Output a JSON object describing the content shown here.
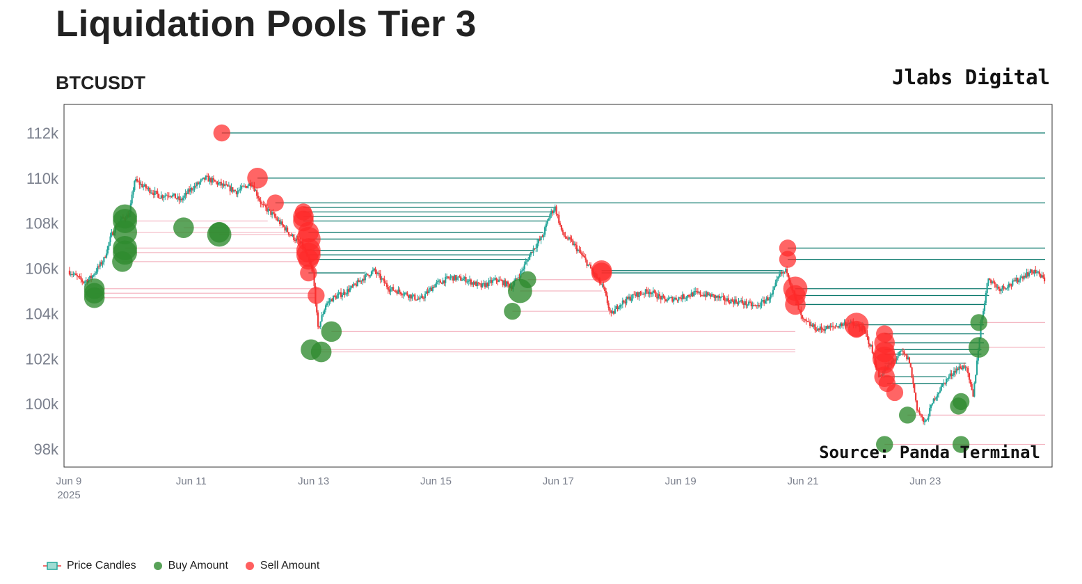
{
  "title": "Liquidation Pools Tier 3",
  "subtitle": "BTCUSDT",
  "brand": "Jlabs Digital",
  "source": "Source: Panda Terminal",
  "colors": {
    "up": "#26a69a",
    "down": "#ef3b3b",
    "buy": "#2e8b2e",
    "sell": "#ff2a2a",
    "buy_line": "#f4b6c2",
    "sell_line": "#0e7a6e"
  },
  "legend": [
    {
      "name": "Price Candles",
      "icon": "candle-icon"
    },
    {
      "name": "Buy Amount",
      "icon": "green-dot-icon"
    },
    {
      "name": "Sell Amount",
      "icon": "red-dot-icon"
    }
  ],
  "chart_data": {
    "type": "scatter",
    "xlim": [
      "2025-06-09",
      "2025-06-24T23:00"
    ],
    "ylim": [
      97200,
      113200
    ],
    "y_ticks": [
      98000,
      100000,
      102000,
      104000,
      106000,
      108000,
      110000,
      112000
    ],
    "y_tick_labels": [
      "98k",
      "100k",
      "102k",
      "104k",
      "106k",
      "108k",
      "110k",
      "112k"
    ],
    "x_ticks": [
      "2025-06-09",
      "2025-06-11",
      "2025-06-13",
      "2025-06-15",
      "2025-06-17",
      "2025-06-19",
      "2025-06-21",
      "2025-06-23"
    ],
    "x_tick_labels": [
      "Jun 9",
      "Jun 11",
      "Jun 13",
      "Jun 15",
      "Jun 17",
      "Jun 19",
      "Jun 21",
      "Jun 23"
    ],
    "x_year_label": "2025",
    "price_path": [
      [
        "2025-06-09T00:00",
        105900
      ],
      [
        "2025-06-09T06:00",
        105400
      ],
      [
        "2025-06-09T09:00",
        105600
      ],
      [
        "2025-06-09T14:00",
        106400
      ],
      [
        "2025-06-09T17:00",
        107500
      ],
      [
        "2025-06-09T20:00",
        108100
      ],
      [
        "2025-06-10T00:00",
        108400
      ],
      [
        "2025-06-10T02:00",
        109900
      ],
      [
        "2025-06-10T06:00",
        109600
      ],
      [
        "2025-06-10T12:00",
        109200
      ],
      [
        "2025-06-10T16:00",
        109300
      ],
      [
        "2025-06-10T20:00",
        109000
      ],
      [
        "2025-06-11T00:00",
        109500
      ],
      [
        "2025-06-11T06:00",
        110000
      ],
      [
        "2025-06-11T12:00",
        109700
      ],
      [
        "2025-06-11T18:00",
        109400
      ],
      [
        "2025-06-12T00:00",
        109800
      ],
      [
        "2025-06-12T04:00",
        108800
      ],
      [
        "2025-06-12T08:00",
        108400
      ],
      [
        "2025-06-12T12:00",
        107900
      ],
      [
        "2025-06-12T16:00",
        107400
      ],
      [
        "2025-06-12T20:00",
        107000
      ],
      [
        "2025-06-13T00:00",
        105800
      ],
      [
        "2025-06-13T02:00",
        103300
      ],
      [
        "2025-06-13T05:00",
        104400
      ],
      [
        "2025-06-13T08:00",
        104700
      ],
      [
        "2025-06-13T12:00",
        104900
      ],
      [
        "2025-06-13T16:00",
        105200
      ],
      [
        "2025-06-13T20:00",
        105600
      ],
      [
        "2025-06-14T00:00",
        105900
      ],
      [
        "2025-06-14T06:00",
        105100
      ],
      [
        "2025-06-14T12:00",
        104900
      ],
      [
        "2025-06-14T18:00",
        104600
      ],
      [
        "2025-06-15T00:00",
        105300
      ],
      [
        "2025-06-15T06:00",
        105600
      ],
      [
        "2025-06-15T12:00",
        105500
      ],
      [
        "2025-06-15T18:00",
        105200
      ],
      [
        "2025-06-16T00:00",
        105500
      ],
      [
        "2025-06-16T06:00",
        105200
      ],
      [
        "2025-06-16T10:00",
        105900
      ],
      [
        "2025-06-16T14:00",
        106800
      ],
      [
        "2025-06-16T18:00",
        107400
      ],
      [
        "2025-06-16T21:00",
        108400
      ],
      [
        "2025-06-16T23:00",
        108700
      ],
      [
        "2025-06-17T02:00",
        107500
      ],
      [
        "2025-06-17T06:00",
        107100
      ],
      [
        "2025-06-17T10:00",
        106500
      ],
      [
        "2025-06-17T14:00",
        105800
      ],
      [
        "2025-06-17T18:00",
        105100
      ],
      [
        "2025-06-17T21:00",
        103900
      ],
      [
        "2025-06-18T00:00",
        104400
      ],
      [
        "2025-06-18T06:00",
        104800
      ],
      [
        "2025-06-18T12:00",
        105000
      ],
      [
        "2025-06-18T18:00",
        104600
      ],
      [
        "2025-06-19T00:00",
        104700
      ],
      [
        "2025-06-19T06:00",
        104900
      ],
      [
        "2025-06-19T12:00",
        104800
      ],
      [
        "2025-06-19T18:00",
        104600
      ],
      [
        "2025-06-20T00:00",
        104500
      ],
      [
        "2025-06-20T06:00",
        104300
      ],
      [
        "2025-06-20T12:00",
        104800
      ],
      [
        "2025-06-20T15:00",
        105700
      ],
      [
        "2025-06-20T18:00",
        105900
      ],
      [
        "2025-06-20T21:00",
        104700
      ],
      [
        "2025-06-21T00:00",
        103700
      ],
      [
        "2025-06-21T06:00",
        103300
      ],
      [
        "2025-06-21T12:00",
        103400
      ],
      [
        "2025-06-21T18:00",
        103600
      ],
      [
        "2025-06-22T00:00",
        103300
      ],
      [
        "2025-06-22T03:00",
        102500
      ],
      [
        "2025-06-22T06:00",
        101200
      ],
      [
        "2025-06-22T10:00",
        101700
      ],
      [
        "2025-06-22T15:00",
        102300
      ],
      [
        "2025-06-22T18:00",
        101900
      ],
      [
        "2025-06-22T21:00",
        99800
      ],
      [
        "2025-06-23T00:00",
        99100
      ],
      [
        "2025-06-23T04:00",
        100300
      ],
      [
        "2025-06-23T08:00",
        101000
      ],
      [
        "2025-06-23T12:00",
        101500
      ],
      [
        "2025-06-23T16:00",
        101700
      ],
      [
        "2025-06-23T19:00",
        100300
      ],
      [
        "2025-06-23T22:00",
        103500
      ],
      [
        "2025-06-24T01:00",
        105600
      ],
      [
        "2025-06-24T05:00",
        105100
      ],
      [
        "2025-06-24T10:00",
        105300
      ],
      [
        "2025-06-24T15:00",
        105700
      ],
      [
        "2025-06-24T19:00",
        105900
      ],
      [
        "2025-06-24T23:00",
        105500
      ]
    ],
    "series": [
      {
        "name": "Buy Amount",
        "points": [
          {
            "x": "2025-06-09T10:00",
            "y": 104700,
            "size": 3
          },
          {
            "x": "2025-06-09T10:00",
            "y": 104900,
            "size": 3
          },
          {
            "x": "2025-06-09T10:00",
            "y": 105100,
            "size": 3
          },
          {
            "x": "2025-06-09T21:00",
            "y": 106300,
            "size": 3
          },
          {
            "x": "2025-06-09T22:00",
            "y": 106700,
            "size": 4
          },
          {
            "x": "2025-06-09T22:00",
            "y": 106900,
            "size": 4
          },
          {
            "x": "2025-06-09T22:00",
            "y": 107600,
            "size": 4
          },
          {
            "x": "2025-06-09T22:00",
            "y": 108100,
            "size": 4
          },
          {
            "x": "2025-06-09T22:00",
            "y": 108300,
            "size": 4
          },
          {
            "x": "2025-06-10T21:00",
            "y": 107800,
            "size": 3
          },
          {
            "x": "2025-06-11T11:00",
            "y": 107500,
            "size": 4
          },
          {
            "x": "2025-06-11T11:00",
            "y": 107600,
            "size": 3
          },
          {
            "x": "2025-06-12T23:00",
            "y": 102400,
            "size": 3
          },
          {
            "x": "2025-06-13T03:00",
            "y": 102300,
            "size": 3
          },
          {
            "x": "2025-06-13T07:00",
            "y": 103200,
            "size": 3
          },
          {
            "x": "2025-06-16T06:00",
            "y": 104100,
            "size": 2
          },
          {
            "x": "2025-06-16T09:00",
            "y": 105000,
            "size": 4
          },
          {
            "x": "2025-06-16T12:00",
            "y": 105500,
            "size": 2
          },
          {
            "x": "2025-06-22T08:00",
            "y": 98200,
            "size": 2
          },
          {
            "x": "2025-06-22T17:00",
            "y": 99500,
            "size": 2
          },
          {
            "x": "2025-06-23T13:00",
            "y": 99900,
            "size": 2
          },
          {
            "x": "2025-06-23T14:00",
            "y": 100100,
            "size": 2
          },
          {
            "x": "2025-06-23T14:00",
            "y": 98200,
            "size": 2
          },
          {
            "x": "2025-06-23T21:00",
            "y": 102500,
            "size": 3
          },
          {
            "x": "2025-06-23T21:00",
            "y": 103600,
            "size": 2
          }
        ]
      },
      {
        "name": "Sell Amount",
        "points": [
          {
            "x": "2025-06-11T12:00",
            "y": 112000,
            "size": 2
          },
          {
            "x": "2025-06-12T02:00",
            "y": 110000,
            "size": 3
          },
          {
            "x": "2025-06-12T09:00",
            "y": 108900,
            "size": 2
          },
          {
            "x": "2025-06-12T20:00",
            "y": 108500,
            "size": 2
          },
          {
            "x": "2025-06-12T20:00",
            "y": 108300,
            "size": 3
          },
          {
            "x": "2025-06-12T20:00",
            "y": 108100,
            "size": 3
          },
          {
            "x": "2025-06-12T22:00",
            "y": 107600,
            "size": 3
          },
          {
            "x": "2025-06-12T22:00",
            "y": 107300,
            "size": 4
          },
          {
            "x": "2025-06-12T22:00",
            "y": 106800,
            "size": 4
          },
          {
            "x": "2025-06-12T22:00",
            "y": 106600,
            "size": 4
          },
          {
            "x": "2025-06-12T22:00",
            "y": 106400,
            "size": 3
          },
          {
            "x": "2025-06-12T22:00",
            "y": 105800,
            "size": 2
          },
          {
            "x": "2025-06-13T01:00",
            "y": 104800,
            "size": 2
          },
          {
            "x": "2025-06-17T17:00",
            "y": 105900,
            "size": 3
          },
          {
            "x": "2025-06-17T17:00",
            "y": 105800,
            "size": 3
          },
          {
            "x": "2025-06-20T18:00",
            "y": 106900,
            "size": 2
          },
          {
            "x": "2025-06-20T18:00",
            "y": 106400,
            "size": 2
          },
          {
            "x": "2025-06-20T21:00",
            "y": 105100,
            "size": 4
          },
          {
            "x": "2025-06-20T21:00",
            "y": 104800,
            "size": 3
          },
          {
            "x": "2025-06-20T21:00",
            "y": 104400,
            "size": 3
          },
          {
            "x": "2025-06-21T21:00",
            "y": 103500,
            "size": 4
          },
          {
            "x": "2025-06-21T21:00",
            "y": 103300,
            "size": 2
          },
          {
            "x": "2025-06-22T08:00",
            "y": 103100,
            "size": 2
          },
          {
            "x": "2025-06-22T08:00",
            "y": 102700,
            "size": 3
          },
          {
            "x": "2025-06-22T08:00",
            "y": 102300,
            "size": 3
          },
          {
            "x": "2025-06-22T08:00",
            "y": 102000,
            "size": 4
          },
          {
            "x": "2025-06-22T08:00",
            "y": 101800,
            "size": 3
          },
          {
            "x": "2025-06-22T08:00",
            "y": 101200,
            "size": 3
          },
          {
            "x": "2025-06-22T09:00",
            "y": 100900,
            "size": 2
          },
          {
            "x": "2025-06-22T12:00",
            "y": 100500,
            "size": 2
          }
        ]
      }
    ],
    "sell_levels": [
      {
        "y": 112000,
        "from": "2025-06-11T12:00",
        "to": "2025-06-24T23:00"
      },
      {
        "y": 110000,
        "from": "2025-06-12T02:00",
        "to": "2025-06-24T23:00"
      },
      {
        "y": 108900,
        "from": "2025-06-12T09:00",
        "to": "2025-06-24T23:00"
      },
      {
        "y": 108700,
        "from": "2025-06-12T20:00",
        "to": "2025-06-16T23:00"
      },
      {
        "y": 108500,
        "from": "2025-06-12T20:00",
        "to": "2025-06-16T22:00"
      },
      {
        "y": 108300,
        "from": "2025-06-12T20:00",
        "to": "2025-06-16T21:00"
      },
      {
        "y": 108100,
        "from": "2025-06-12T20:00",
        "to": "2025-06-16T20:00"
      },
      {
        "y": 107600,
        "from": "2025-06-12T22:00",
        "to": "2025-06-16T18:00"
      },
      {
        "y": 107300,
        "from": "2025-06-12T22:00",
        "to": "2025-06-16T17:00"
      },
      {
        "y": 106800,
        "from": "2025-06-12T22:00",
        "to": "2025-06-16T14:00"
      },
      {
        "y": 106600,
        "from": "2025-06-12T22:00",
        "to": "2025-06-16T13:00"
      },
      {
        "y": 106400,
        "from": "2025-06-12T22:00",
        "to": "2025-06-16T12:00"
      },
      {
        "y": 105800,
        "from": "2025-06-12T22:00",
        "to": "2025-06-13T20:00"
      },
      {
        "y": 105900,
        "from": "2025-06-17T17:00",
        "to": "2025-06-20T16:00"
      },
      {
        "y": 105800,
        "from": "2025-06-17T17:00",
        "to": "2025-06-20T15:00"
      },
      {
        "y": 106900,
        "from": "2025-06-20T18:00",
        "to": "2025-06-24T23:00"
      },
      {
        "y": 106400,
        "from": "2025-06-20T18:00",
        "to": "2025-06-24T23:00"
      },
      {
        "y": 105100,
        "from": "2025-06-20T21:00",
        "to": "2025-06-24T02:00"
      },
      {
        "y": 104800,
        "from": "2025-06-20T21:00",
        "to": "2025-06-24T01:00"
      },
      {
        "y": 104400,
        "from": "2025-06-20T21:00",
        "to": "2025-06-24T00:00"
      },
      {
        "y": 103500,
        "from": "2025-06-21T21:00",
        "to": "2025-06-23T23:00"
      },
      {
        "y": 103100,
        "from": "2025-06-22T08:00",
        "to": "2025-06-23T23:00"
      },
      {
        "y": 102700,
        "from": "2025-06-22T08:00",
        "to": "2025-06-23T23:00"
      },
      {
        "y": 102400,
        "from": "2025-06-22T08:00",
        "to": "2025-06-23T22:00"
      },
      {
        "y": 102200,
        "from": "2025-06-22T08:00",
        "to": "2025-06-23T22:00"
      },
      {
        "y": 101800,
        "from": "2025-06-22T08:00",
        "to": "2025-06-23T16:00"
      },
      {
        "y": 101200,
        "from": "2025-06-22T08:00",
        "to": "2025-06-23T08:00"
      },
      {
        "y": 100900,
        "from": "2025-06-22T09:00",
        "to": "2025-06-23T07:00"
      }
    ],
    "buy_levels": [
      {
        "y": 104700,
        "from": "2025-06-09T10:00",
        "to": "2025-06-13T01:00"
      },
      {
        "y": 104900,
        "from": "2025-06-09T10:00",
        "to": "2025-06-13T01:00"
      },
      {
        "y": 105100,
        "from": "2025-06-09T10:00",
        "to": "2025-06-13T02:00"
      },
      {
        "y": 106300,
        "from": "2025-06-09T21:00",
        "to": "2025-06-12T22:00"
      },
      {
        "y": 106700,
        "from": "2025-06-09T22:00",
        "to": "2025-06-12T22:00"
      },
      {
        "y": 106900,
        "from": "2025-06-09T22:00",
        "to": "2025-06-12T21:00"
      },
      {
        "y": 107600,
        "from": "2025-06-09T22:00",
        "to": "2025-06-12T17:00"
      },
      {
        "y": 108100,
        "from": "2025-06-09T22:00",
        "to": "2025-06-12T06:00"
      },
      {
        "y": 107800,
        "from": "2025-06-10T21:00",
        "to": "2025-06-12T12:00"
      },
      {
        "y": 107500,
        "from": "2025-06-11T11:00",
        "to": "2025-06-12T17:00"
      },
      {
        "y": 102400,
        "from": "2025-06-12T23:00",
        "to": "2025-06-20T21:00"
      },
      {
        "y": 102300,
        "from": "2025-06-13T03:00",
        "to": "2025-06-20T21:00"
      },
      {
        "y": 103200,
        "from": "2025-06-13T07:00",
        "to": "2025-06-20T21:00"
      },
      {
        "y": 104100,
        "from": "2025-06-16T06:00",
        "to": "2025-06-17T21:00"
      },
      {
        "y": 105000,
        "from": "2025-06-16T09:00",
        "to": "2025-06-17T17:00"
      },
      {
        "y": 105500,
        "from": "2025-06-16T12:00",
        "to": "2025-06-17T15:00"
      },
      {
        "y": 103600,
        "from": "2025-06-23T21:00",
        "to": "2025-06-24T23:00"
      },
      {
        "y": 102500,
        "from": "2025-06-23T21:00",
        "to": "2025-06-24T23:00"
      },
      {
        "y": 99500,
        "from": "2025-06-22T17:00",
        "to": "2025-06-24T23:00"
      },
      {
        "y": 98200,
        "from": "2025-06-22T08:00",
        "to": "2025-06-24T23:00"
      }
    ]
  }
}
